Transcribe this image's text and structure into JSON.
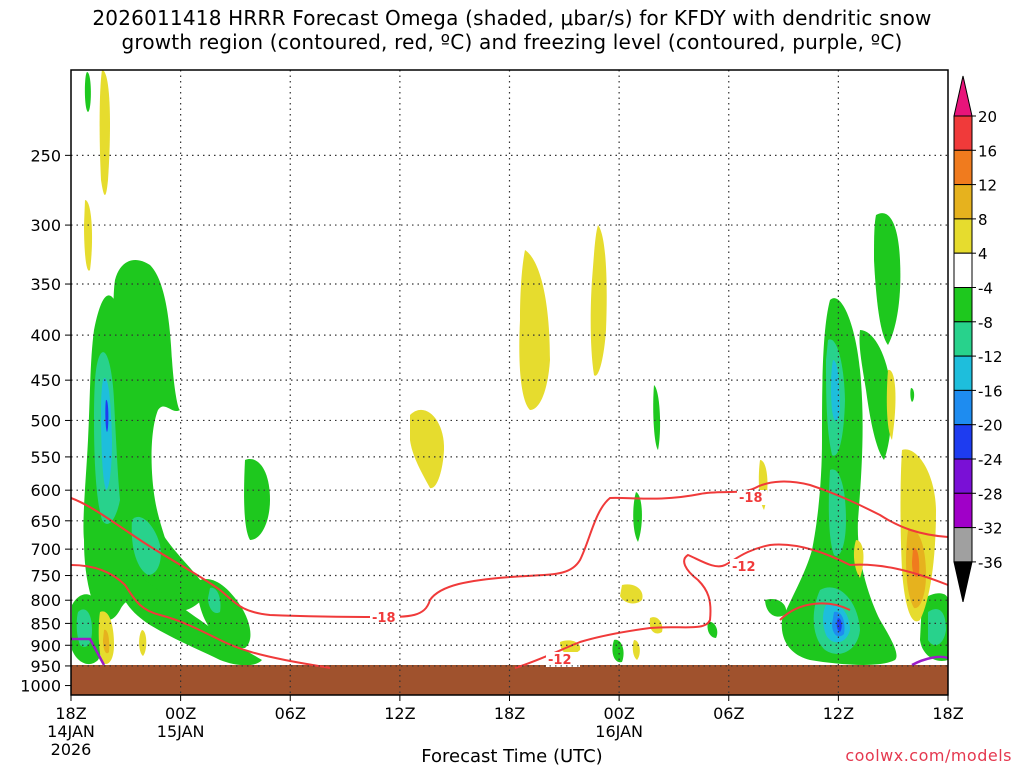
{
  "chart_data": {
    "type": "heatmap",
    "title_line1": "2026011418 HRRR Forecast Omega (shaded, μbar/s) for KFDY with dendritic snow",
    "title_line2": "growth region (contoured, red, ºC) and freezing level (contoured, purple, ºC)",
    "xlabel": "Forecast Time (UTC)",
    "ylabel": "",
    "x_ticks": [
      {
        "label": "18Z",
        "sub1": "14JAN",
        "sub2": "2026"
      },
      {
        "label": "00Z",
        "sub1": "15JAN",
        "sub2": ""
      },
      {
        "label": "06Z",
        "sub1": "",
        "sub2": ""
      },
      {
        "label": "12Z",
        "sub1": "",
        "sub2": ""
      },
      {
        "label": "18Z",
        "sub1": "",
        "sub2": ""
      },
      {
        "label": "00Z",
        "sub1": "16JAN",
        "sub2": ""
      },
      {
        "label": "06Z",
        "sub1": "",
        "sub2": ""
      },
      {
        "label": "12Z",
        "sub1": "",
        "sub2": ""
      },
      {
        "label": "18Z",
        "sub1": "",
        "sub2": ""
      }
    ],
    "x_range_hours": [
      0,
      48
    ],
    "y_ticks": [
      250,
      300,
      350,
      400,
      450,
      500,
      550,
      600,
      650,
      700,
      750,
      800,
      850,
      900,
      950,
      1000
    ],
    "y_range_hPa": [
      200,
      1025
    ],
    "y_scale": "log",
    "grid": true,
    "colorbar": {
      "labels": [
        "20",
        "16",
        "12",
        "8",
        "4",
        "-4",
        "-8",
        "-12",
        "-16",
        "-20",
        "-24",
        "-28",
        "-32",
        "-36"
      ],
      "colors": [
        "#e8147a",
        "#f03a3a",
        "#f07b1e",
        "#e6b21e",
        "#e6dc2e",
        "#ffffff",
        "#1ec81e",
        "#28d28c",
        "#1ebedc",
        "#1e8cf0",
        "#1e3cf0",
        "#7a10d6",
        "#a000c8",
        "#a0a0a0",
        "#000000"
      ]
    },
    "contour_labels": [
      "-18",
      "-18",
      "-12",
      "-12"
    ],
    "credit": "coolwx.com/models"
  }
}
